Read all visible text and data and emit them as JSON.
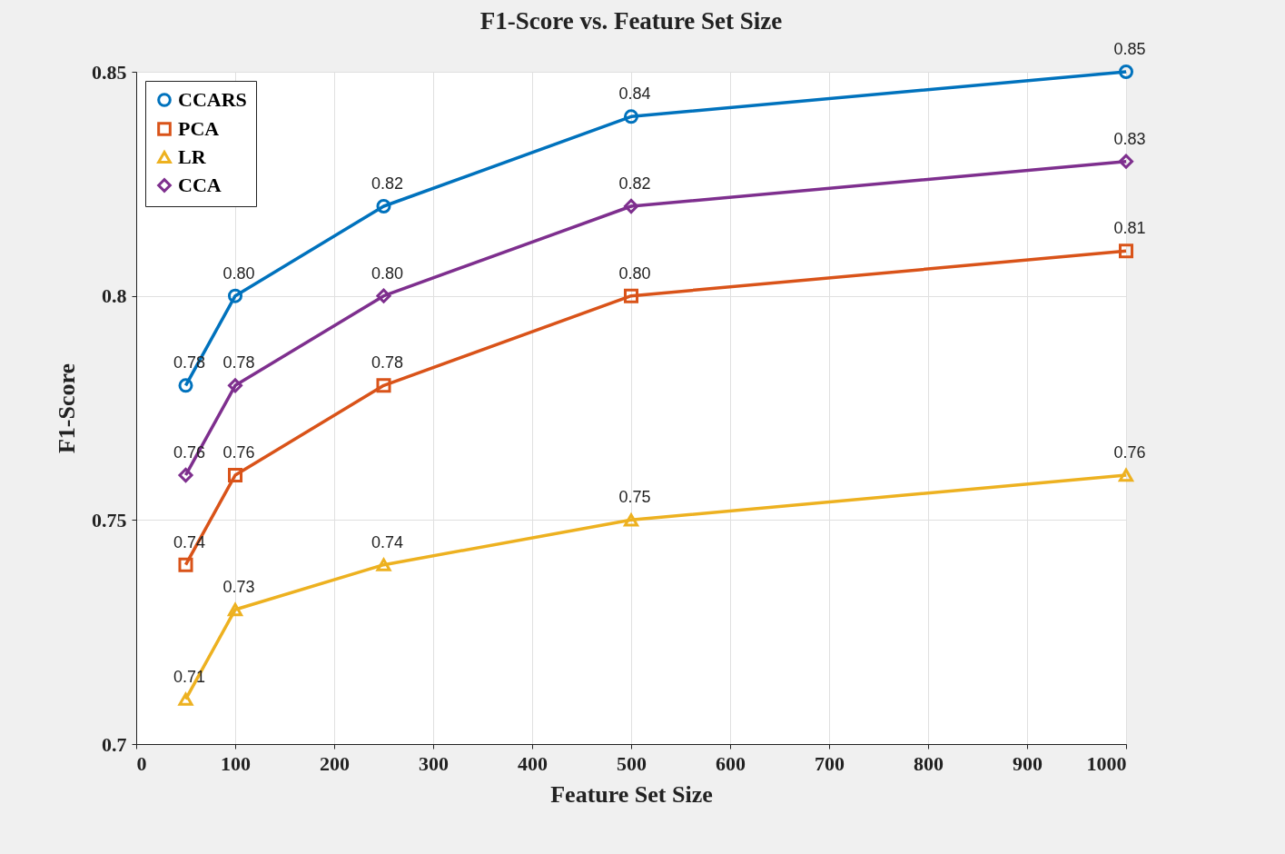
{
  "chart_data": {
    "type": "line",
    "title": "F1-Score vs. Feature Set Size",
    "xlabel": "Feature Set Size",
    "ylabel": "F1-Score",
    "x": [
      50,
      100,
      250,
      500,
      1000
    ],
    "series": [
      {
        "name": "CCARS",
        "color": "#0072bd",
        "marker": "circle",
        "values": [
          0.78,
          0.8,
          0.82,
          0.84,
          0.85
        ],
        "value_labels": [
          "0.78",
          "0.80",
          "0.82",
          "0.84",
          "0.85"
        ]
      },
      {
        "name": "PCA",
        "color": "#d95319",
        "marker": "square",
        "values": [
          0.74,
          0.76,
          0.78,
          0.8,
          0.81
        ],
        "value_labels": [
          "0.74",
          "0.76",
          "0.78",
          "0.80",
          "0.81"
        ]
      },
      {
        "name": "LR",
        "color": "#edb120",
        "marker": "triangle",
        "values": [
          0.71,
          0.73,
          0.74,
          0.75,
          0.76
        ],
        "value_labels": [
          "0.71",
          "0.73",
          "0.74",
          "0.75",
          "0.76"
        ]
      },
      {
        "name": "CCA",
        "color": "#7e2f8e",
        "marker": "diamond",
        "values": [
          0.76,
          0.78,
          0.8,
          0.82,
          0.83
        ],
        "value_labels": [
          "0.76",
          "0.78",
          "0.80",
          "0.82",
          "0.83"
        ]
      }
    ],
    "xlim": [
      0,
      1000
    ],
    "xticks": [
      0,
      100,
      200,
      300,
      400,
      500,
      600,
      700,
      800,
      900,
      1000
    ],
    "ylim": [
      0.7,
      0.85
    ],
    "yticks": [
      0.7,
      0.75,
      0.8,
      0.85
    ],
    "grid": true,
    "legend": "top left",
    "line_style": "solid"
  }
}
